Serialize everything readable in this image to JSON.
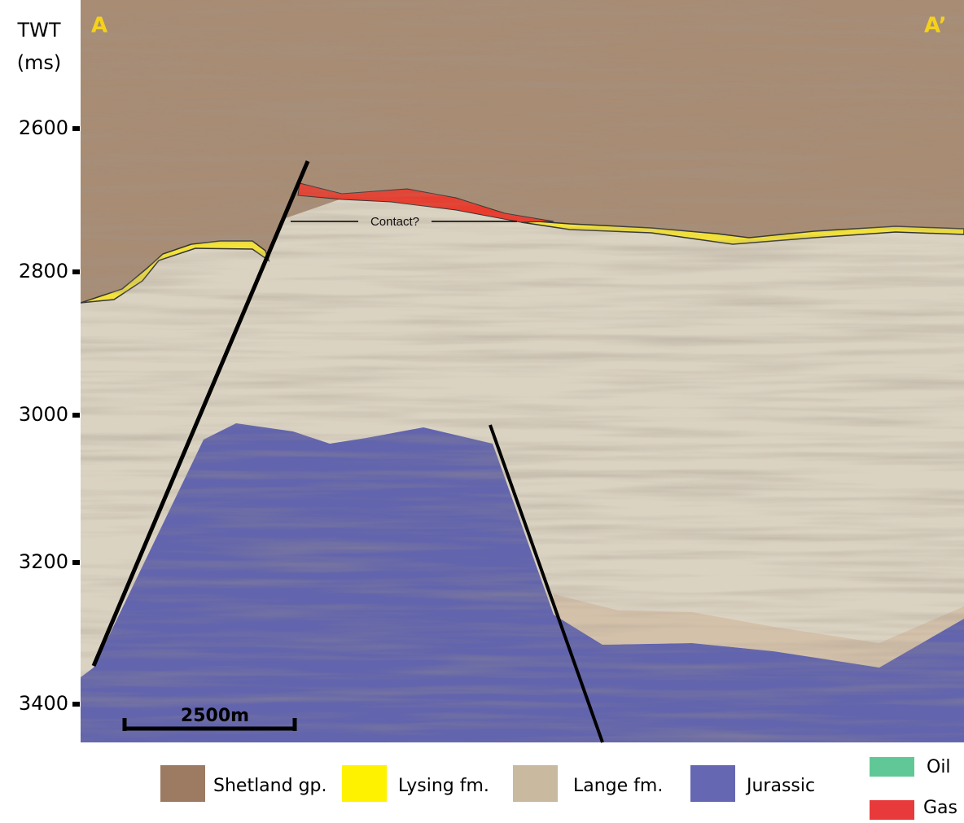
{
  "axis": {
    "title_line1": "TWT",
    "title_line2": "(ms)",
    "ticks": [
      "2600",
      "2800",
      "3000",
      "3200",
      "3400"
    ]
  },
  "section": {
    "left_label": "A",
    "right_label": "A’",
    "contact_label": "Contact?",
    "scale_label": "2500m"
  },
  "legend": {
    "items": [
      "Shetland gp.",
      "Lysing fm.",
      "Lange fm.",
      "Jurassic",
      "Oil",
      "Gas"
    ]
  }
}
